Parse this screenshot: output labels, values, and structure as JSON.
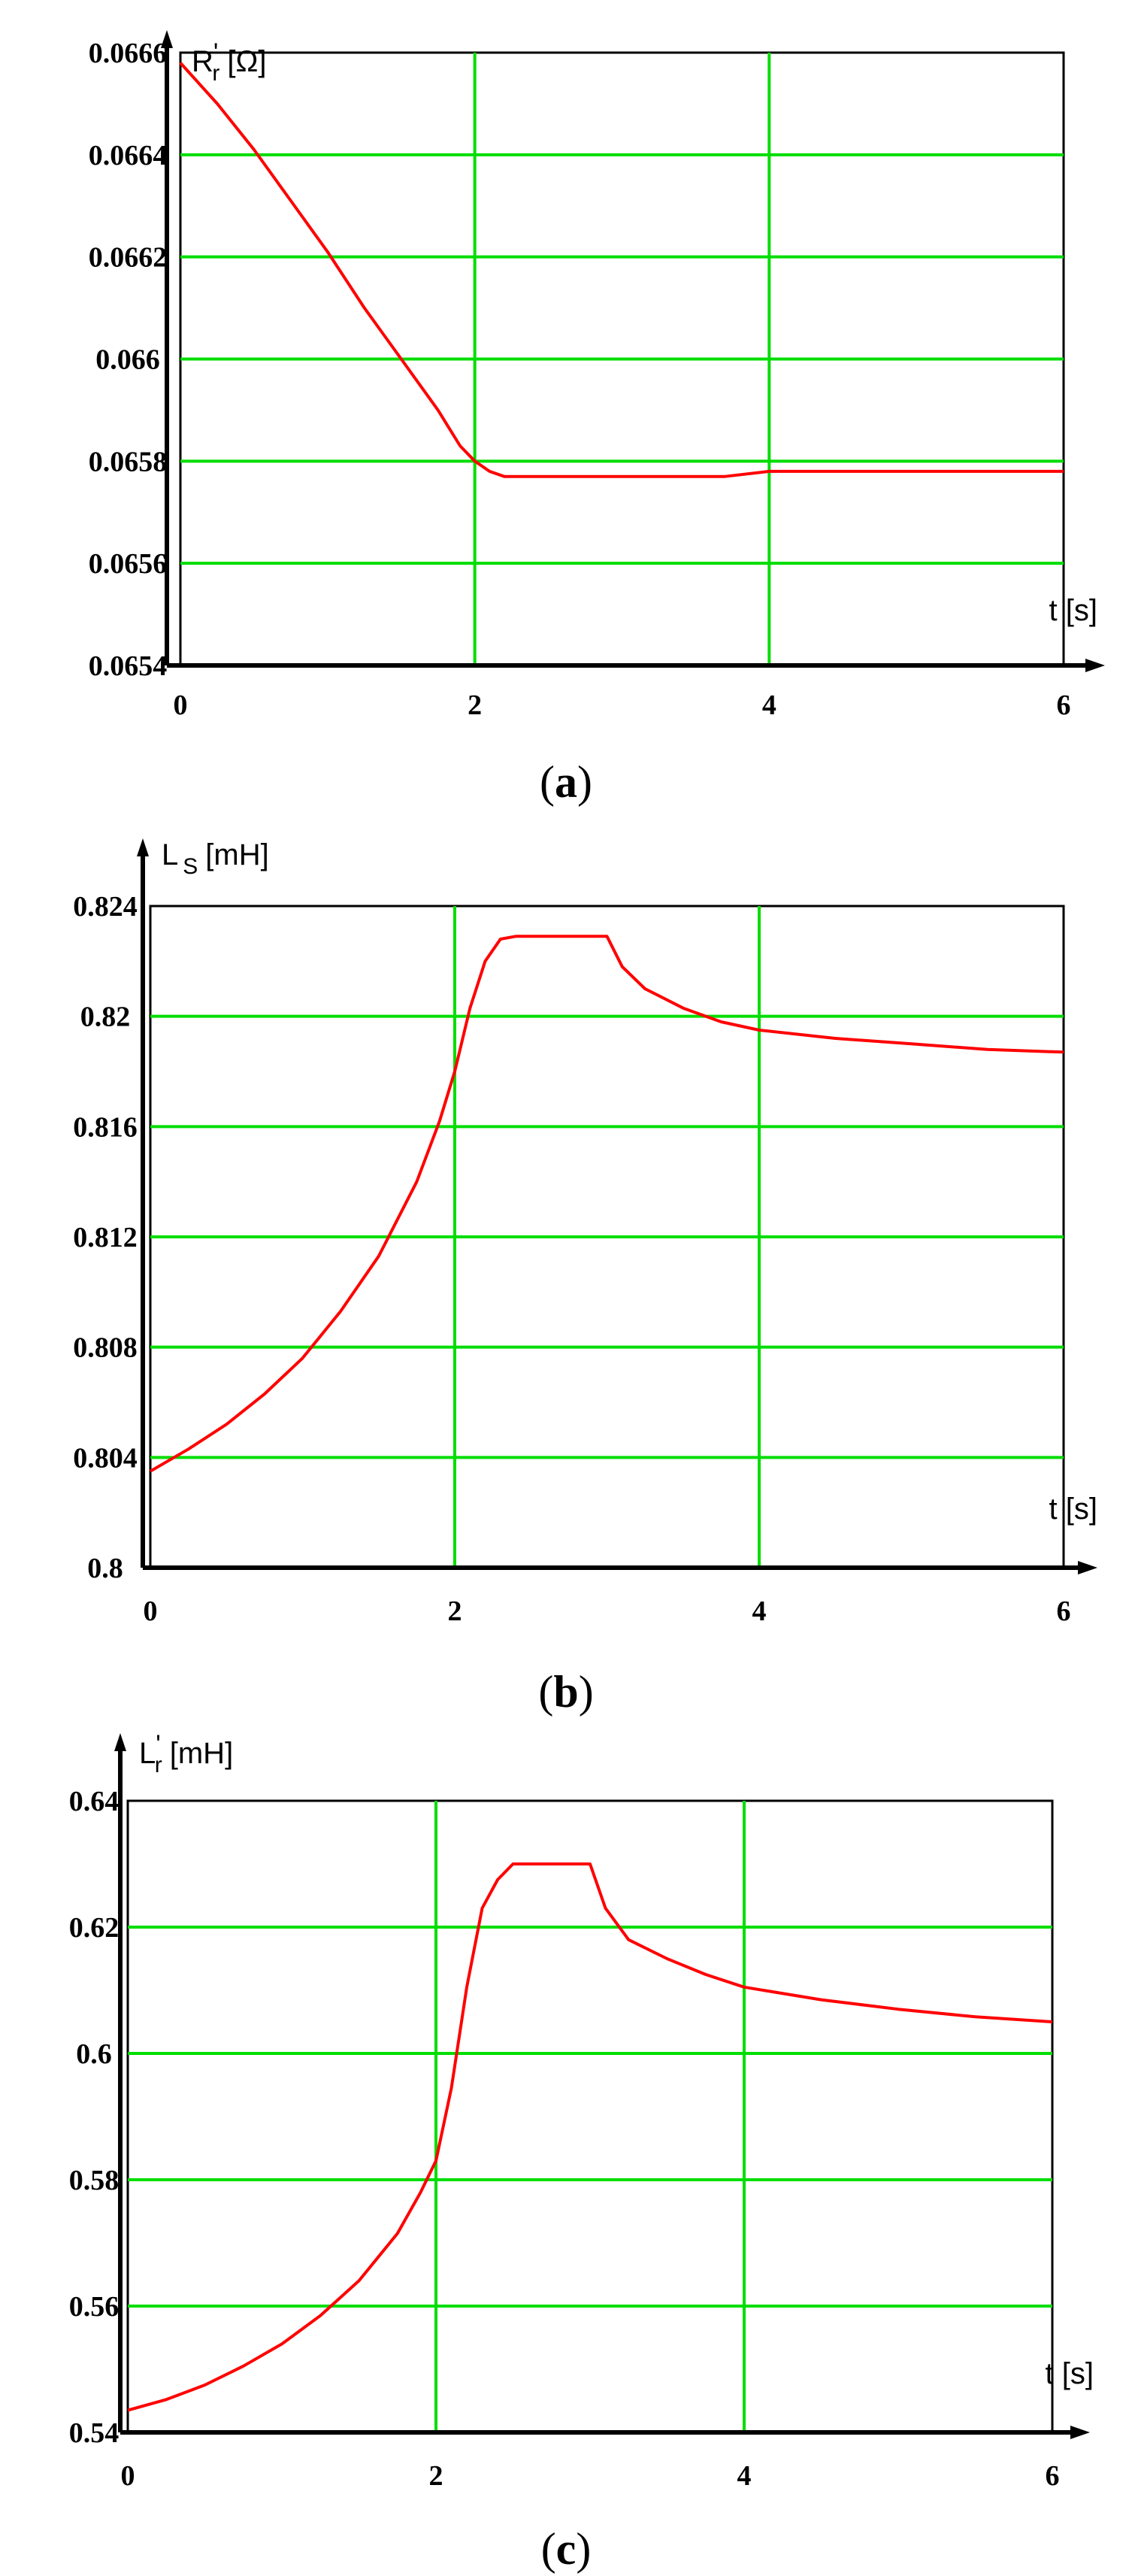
{
  "chart_data": [
    {
      "type": "line",
      "subtitle": "(a)",
      "subtitle_letter": "a",
      "ylabel_main": "R",
      "ylabel_sub": "r",
      "ylabel_prime": "'",
      "ylabel_unit": "[Ω]",
      "xlabel": "t [s]",
      "xlim": [
        0,
        6
      ],
      "ylim": [
        0.0654,
        0.0666
      ],
      "x_ticks": [
        0,
        2,
        4,
        6
      ],
      "x_tick_labels": [
        "0",
        "2",
        "4",
        "6"
      ],
      "y_ticks": [
        0.0654,
        0.0656,
        0.0658,
        0.066,
        0.0662,
        0.0664,
        0.0666
      ],
      "y_tick_labels": [
        "0.0654",
        "0.0656",
        "0.0658",
        "0.066",
        "0.0662",
        "0.0664",
        "0.0666"
      ],
      "grid": true,
      "grid_color": "#00dd00",
      "line_color": "#ff0000",
      "series": [
        {
          "x": [
            0,
            0.25,
            0.5,
            0.75,
            1.0,
            1.25,
            1.5,
            1.75,
            1.9,
            2.0,
            2.1,
            2.2,
            2.5,
            3.0,
            3.5,
            3.7,
            4.0,
            5.0,
            6.0
          ],
          "y": [
            0.06658,
            0.0665,
            0.06641,
            0.06631,
            0.06621,
            0.0661,
            0.066,
            0.0659,
            0.06583,
            0.0658,
            0.06578,
            0.06577,
            0.06577,
            0.06577,
            0.06577,
            0.06577,
            0.06578,
            0.06578,
            0.06578
          ]
        }
      ]
    },
    {
      "type": "line",
      "subtitle": "(b)",
      "subtitle_letter": "b",
      "ylabel_main": "L",
      "ylabel_sub": "S",
      "ylabel_prime": "",
      "ylabel_unit": "[mH]",
      "xlabel": "t [s]",
      "xlim": [
        0,
        6
      ],
      "ylim": [
        0.8,
        0.824
      ],
      "x_ticks": [
        0,
        2,
        4,
        6
      ],
      "x_tick_labels": [
        "0",
        "2",
        "4",
        "6"
      ],
      "y_ticks": [
        0.8,
        0.804,
        0.808,
        0.812,
        0.816,
        0.82,
        0.824
      ],
      "y_tick_labels": [
        "0.8",
        "0.804",
        "0.808",
        "0.812",
        "0.816",
        "0.82",
        "0.824"
      ],
      "grid": true,
      "grid_color": "#00dd00",
      "line_color": "#ff0000",
      "series": [
        {
          "x": [
            0,
            0.25,
            0.5,
            0.75,
            1.0,
            1.25,
            1.5,
            1.75,
            1.9,
            2.0,
            2.1,
            2.2,
            2.3,
            2.4,
            2.5,
            2.75,
            3.0,
            3.1,
            3.25,
            3.5,
            3.75,
            4.0,
            4.5,
            5.0,
            5.5,
            6.0
          ],
          "y": [
            0.8035,
            0.8043,
            0.8052,
            0.8063,
            0.8076,
            0.8093,
            0.8113,
            0.814,
            0.8162,
            0.818,
            0.8203,
            0.822,
            0.8228,
            0.8229,
            0.8229,
            0.8229,
            0.8229,
            0.8218,
            0.821,
            0.8203,
            0.8198,
            0.8195,
            0.8192,
            0.819,
            0.8188,
            0.8187
          ]
        }
      ]
    },
    {
      "type": "line",
      "subtitle": "(c)",
      "subtitle_letter": "c",
      "ylabel_main": "L",
      "ylabel_sub": "r",
      "ylabel_prime": "'",
      "ylabel_unit": "[mH]",
      "xlabel": "t [s]",
      "xlim": [
        0,
        6
      ],
      "ylim": [
        0.54,
        0.64
      ],
      "x_ticks": [
        0,
        2,
        4,
        6
      ],
      "x_tick_labels": [
        "0",
        "2",
        "4",
        "6"
      ],
      "y_ticks": [
        0.54,
        0.56,
        0.58,
        0.6,
        0.62,
        0.64
      ],
      "y_tick_labels": [
        "0.54",
        "0.56",
        "0.58",
        "0.6",
        "0.62",
        "0.64"
      ],
      "grid": true,
      "grid_color": "#00dd00",
      "line_color": "#ff0000",
      "series": [
        {
          "x": [
            0,
            0.25,
            0.5,
            0.75,
            1.0,
            1.25,
            1.5,
            1.75,
            1.9,
            2.0,
            2.1,
            2.2,
            2.3,
            2.4,
            2.5,
            2.75,
            3.0,
            3.1,
            3.25,
            3.5,
            3.75,
            4.0,
            4.5,
            5.0,
            5.5,
            6.0
          ],
          "y": [
            0.5435,
            0.5452,
            0.5475,
            0.5505,
            0.554,
            0.5585,
            0.564,
            0.5715,
            0.578,
            0.583,
            0.5945,
            0.6105,
            0.623,
            0.6275,
            0.63,
            0.63,
            0.63,
            0.623,
            0.618,
            0.615,
            0.6125,
            0.6105,
            0.6085,
            0.607,
            0.6058,
            0.605
          ]
        }
      ]
    }
  ]
}
